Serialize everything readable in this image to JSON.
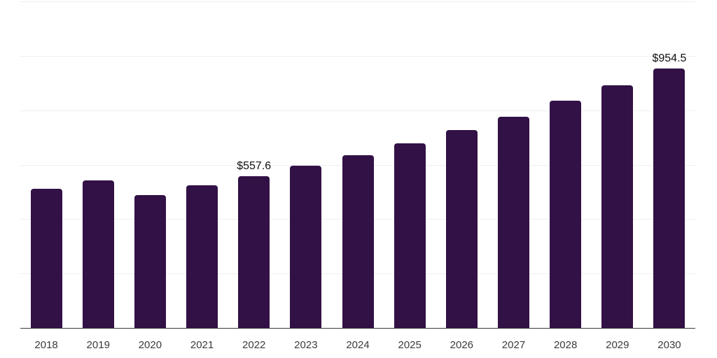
{
  "chart_data": {
    "type": "bar",
    "title": "",
    "xlabel": "",
    "ylabel": "",
    "categories": [
      "2018",
      "2019",
      "2020",
      "2021",
      "2022",
      "2023",
      "2024",
      "2025",
      "2026",
      "2027",
      "2028",
      "2029",
      "2030"
    ],
    "values": [
      512,
      543,
      489,
      524,
      557.6,
      596,
      636,
      679,
      726,
      777,
      835,
      892,
      954.5
    ],
    "value_labels": [
      "",
      "",
      "",
      "",
      "$557.6",
      "",
      "",
      "",
      "",
      "",
      "",
      "",
      "$954.5"
    ],
    "ylim": [
      0,
      1200
    ],
    "grid_interval": 200,
    "grid": "horizontal-only",
    "legend_position": "none",
    "colors": {
      "bar": "#321146",
      "background": "#ffffff",
      "gridline": "#efefef",
      "axis_line": "#3a3a3a",
      "tick_label": "#3b3b3b",
      "value_label": "#111111"
    }
  }
}
